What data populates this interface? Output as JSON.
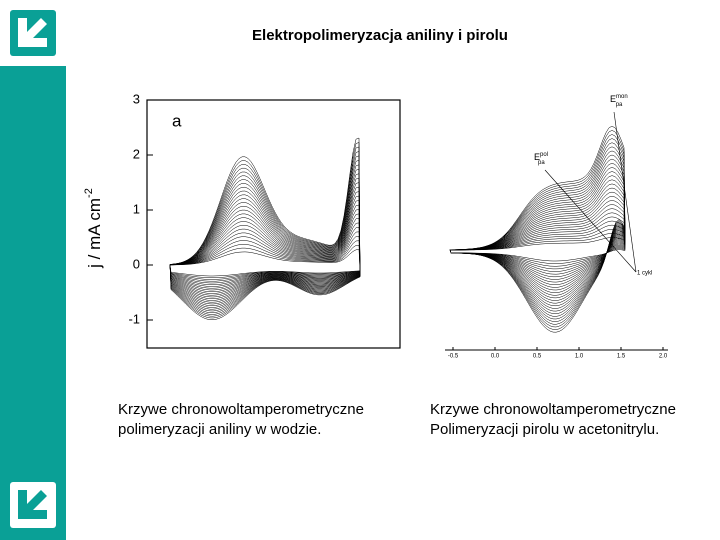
{
  "header": {
    "title": "Elektropolimeryzacja aniliny i pirolu"
  },
  "figures": [
    {
      "panel_label": "a",
      "axis_label": "j / mA cm",
      "axis_label_sup": "-2",
      "yticks": [
        "3",
        "2",
        "1",
        "0",
        "-1"
      ],
      "caption": [
        "Krzywe chronowoltamperometryczne",
        "polimeryzacji aniliny  w wodzie."
      ]
    },
    {
      "annotations": [
        {
          "main": "E",
          "sup": "mon",
          "sub": "pa"
        },
        {
          "main": "E",
          "sup": "pol",
          "sub": "pa"
        },
        {
          "main": "1 cykl"
        }
      ],
      "xticks": [
        "-0.5",
        "0.0",
        "0.5",
        "1.0",
        "1.5",
        "2.0"
      ],
      "caption": [
        "Krzywe chronowoltamperometryczne",
        "Polimeryzacji  pirolu w acetonitrylu."
      ]
    }
  ]
}
